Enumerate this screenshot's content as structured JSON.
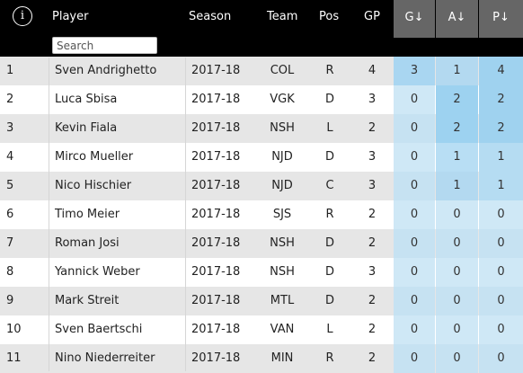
{
  "header": {
    "info_icon": "i",
    "player": "Player",
    "season": "Season",
    "team": "Team",
    "pos": "Pos",
    "gp": "GP",
    "g_sort": "G↓",
    "a_sort": "A↓",
    "p_sort": "P↓"
  },
  "search": {
    "placeholder": "Search"
  },
  "colors": {
    "header_bg": "#000000",
    "sort_header_bg": "#666666",
    "row_shade": "#e6e6e6",
    "stat_light": "#cfe8f6",
    "stat_mid": "#b8def4",
    "stat_strong": "#9dd2f0"
  },
  "rows": [
    {
      "rank": "1",
      "player": "Sven Andrighetto",
      "season": "2017-18",
      "team": "COL",
      "pos": "R",
      "gp": "4",
      "g": "3",
      "a": "1",
      "p": "4"
    },
    {
      "rank": "2",
      "player": "Luca Sbisa",
      "season": "2017-18",
      "team": "VGK",
      "pos": "D",
      "gp": "3",
      "g": "0",
      "a": "2",
      "p": "2"
    },
    {
      "rank": "3",
      "player": "Kevin Fiala",
      "season": "2017-18",
      "team": "NSH",
      "pos": "L",
      "gp": "2",
      "g": "0",
      "a": "2",
      "p": "2"
    },
    {
      "rank": "4",
      "player": "Mirco Mueller",
      "season": "2017-18",
      "team": "NJD",
      "pos": "D",
      "gp": "3",
      "g": "0",
      "a": "1",
      "p": "1"
    },
    {
      "rank": "5",
      "player": "Nico Hischier",
      "season": "2017-18",
      "team": "NJD",
      "pos": "C",
      "gp": "3",
      "g": "0",
      "a": "1",
      "p": "1"
    },
    {
      "rank": "6",
      "player": "Timo Meier",
      "season": "2017-18",
      "team": "SJS",
      "pos": "R",
      "gp": "2",
      "g": "0",
      "a": "0",
      "p": "0"
    },
    {
      "rank": "7",
      "player": "Roman Josi",
      "season": "2017-18",
      "team": "NSH",
      "pos": "D",
      "gp": "2",
      "g": "0",
      "a": "0",
      "p": "0"
    },
    {
      "rank": "8",
      "player": "Yannick Weber",
      "season": "2017-18",
      "team": "NSH",
      "pos": "D",
      "gp": "3",
      "g": "0",
      "a": "0",
      "p": "0"
    },
    {
      "rank": "9",
      "player": "Mark Streit",
      "season": "2017-18",
      "team": "MTL",
      "pos": "D",
      "gp": "2",
      "g": "0",
      "a": "0",
      "p": "0"
    },
    {
      "rank": "10",
      "player": "Sven Baertschi",
      "season": "2017-18",
      "team": "VAN",
      "pos": "L",
      "gp": "2",
      "g": "0",
      "a": "0",
      "p": "0"
    },
    {
      "rank": "11",
      "player": "Nino Niederreiter",
      "season": "2017-18",
      "team": "MIN",
      "pos": "R",
      "gp": "2",
      "g": "0",
      "a": "0",
      "p": "0"
    }
  ]
}
